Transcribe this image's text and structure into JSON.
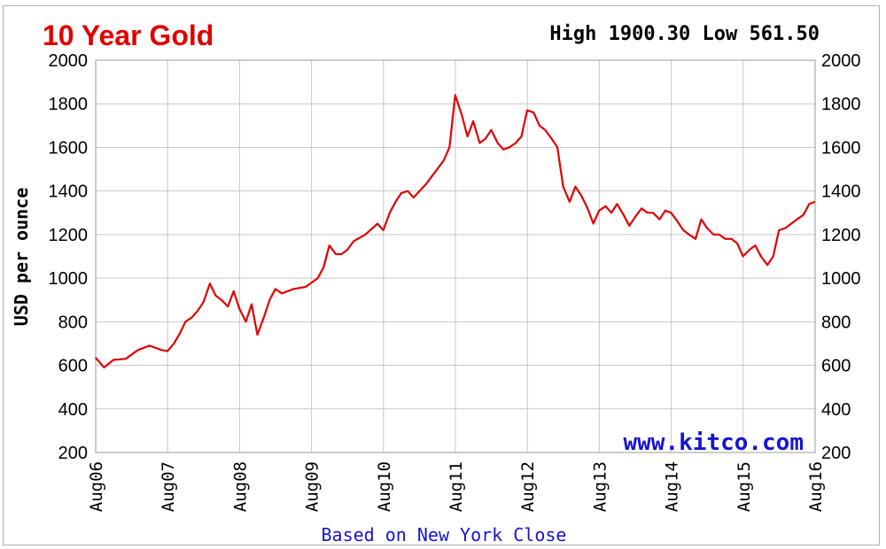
{
  "chart_data": {
    "type": "line",
    "title": "10 Year Gold",
    "high_low": "High 1900.30 Low 561.50",
    "ylabel": "USD per ounce",
    "ylim": [
      200,
      2000
    ],
    "yticks": [
      200,
      400,
      600,
      800,
      1000,
      1200,
      1400,
      1600,
      1800,
      2000
    ],
    "x_tick_labels": [
      "Aug06",
      "Aug07",
      "Aug08",
      "Aug09",
      "Aug10",
      "Aug11",
      "Aug12",
      "Aug13",
      "Aug14",
      "Aug15",
      "Aug16"
    ],
    "xlim": [
      2006.583,
      2016.583
    ],
    "watermark": "www.kitco.com",
    "caption": "Based on New York Close",
    "grid": true,
    "series": [
      {
        "color": "#e00000",
        "x": [
          2006.58,
          2006.7,
          2006.83,
          2007.0,
          2007.17,
          2007.33,
          2007.5,
          2007.58,
          2007.67,
          2007.75,
          2007.83,
          2007.92,
          2008.0,
          2008.08,
          2008.17,
          2008.25,
          2008.33,
          2008.42,
          2008.5,
          2008.58,
          2008.67,
          2008.75,
          2008.83,
          2008.92,
          2009.0,
          2009.08,
          2009.17,
          2009.33,
          2009.5,
          2009.67,
          2009.75,
          2009.83,
          2009.92,
          2010.0,
          2010.08,
          2010.17,
          2010.33,
          2010.5,
          2010.58,
          2010.67,
          2010.75,
          2010.83,
          2010.92,
          2011.0,
          2011.17,
          2011.33,
          2011.42,
          2011.5,
          2011.58,
          2011.67,
          2011.75,
          2011.83,
          2011.92,
          2012.0,
          2012.08,
          2012.17,
          2012.25,
          2012.33,
          2012.42,
          2012.5,
          2012.58,
          2012.67,
          2012.75,
          2012.83,
          2012.92,
          2013.0,
          2013.08,
          2013.17,
          2013.25,
          2013.33,
          2013.42,
          2013.5,
          2013.58,
          2013.67,
          2013.75,
          2013.83,
          2013.92,
          2014.0,
          2014.08,
          2014.17,
          2014.25,
          2014.33,
          2014.42,
          2014.5,
          2014.58,
          2014.67,
          2014.75,
          2014.83,
          2014.92,
          2015.0,
          2015.08,
          2015.17,
          2015.25,
          2015.33,
          2015.42,
          2015.5,
          2015.58,
          2015.67,
          2015.75,
          2015.83,
          2015.92,
          2016.0,
          2016.08,
          2016.17,
          2016.25,
          2016.33,
          2016.42,
          2016.5,
          2016.58
        ],
        "y": [
          635,
          590,
          625,
          630,
          670,
          690,
          670,
          665,
          700,
          745,
          800,
          820,
          850,
          890,
          975,
          920,
          900,
          870,
          940,
          860,
          800,
          880,
          740,
          820,
          900,
          950,
          930,
          950,
          960,
          1000,
          1050,
          1150,
          1110,
          1110,
          1130,
          1170,
          1200,
          1250,
          1220,
          1300,
          1350,
          1390,
          1400,
          1370,
          1430,
          1500,
          1540,
          1600,
          1840,
          1750,
          1650,
          1720,
          1620,
          1640,
          1680,
          1620,
          1590,
          1600,
          1620,
          1650,
          1770,
          1760,
          1700,
          1680,
          1640,
          1600,
          1420,
          1350,
          1420,
          1380,
          1320,
          1250,
          1310,
          1330,
          1300,
          1340,
          1290,
          1240,
          1280,
          1320,
          1300,
          1300,
          1270,
          1310,
          1300,
          1260,
          1220,
          1200,
          1180,
          1270,
          1230,
          1200,
          1200,
          1180,
          1180,
          1160,
          1100,
          1130,
          1150,
          1100,
          1060,
          1100,
          1220,
          1230,
          1250,
          1270,
          1290,
          1340,
          1350
        ]
      }
    ]
  }
}
